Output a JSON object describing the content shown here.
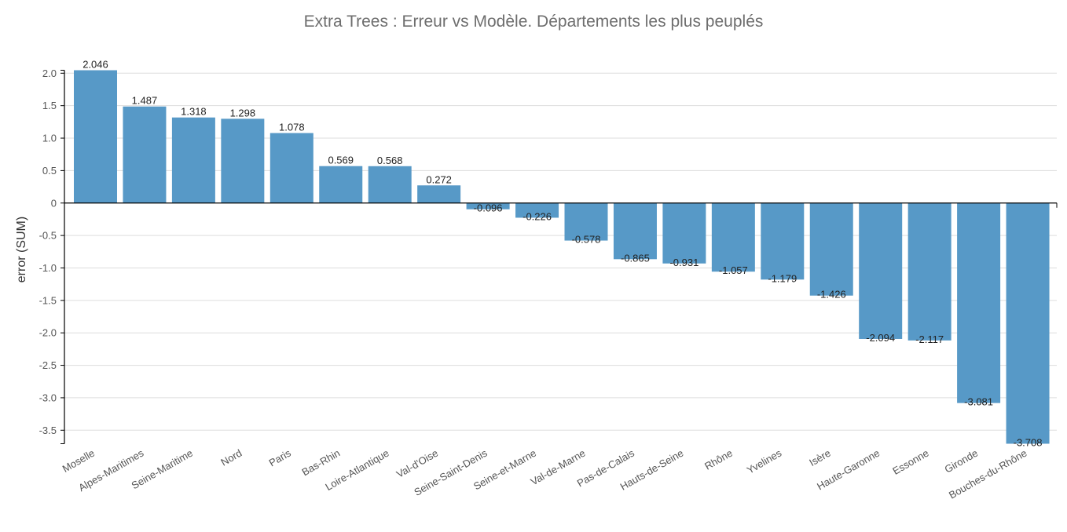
{
  "chart_data": {
    "type": "bar",
    "title": "Extra Trees : Erreur vs Modèle. Départements les plus peuplés",
    "xlabel": "",
    "ylabel": "error (SUM)",
    "categories": [
      "Moselle",
      "Alpes-Maritimes",
      "Seine-Maritime",
      "Nord",
      "Paris",
      "Bas-Rhin",
      "Loire-Atlantique",
      "Val-d'Oise",
      "Seine-Saint-Denis",
      "Seine-et-Marne",
      "Val-de-Marne",
      "Pas-de-Calais",
      "Hauts-de-Seine",
      "Rhône",
      "Yvelines",
      "Isère",
      "Haute-Garonne",
      "Essonne",
      "Gironde",
      "Bouches-du-Rhône"
    ],
    "values": [
      2.046,
      1.487,
      1.318,
      1.298,
      1.078,
      0.569,
      0.568,
      0.272,
      -0.096,
      -0.226,
      -0.578,
      -0.865,
      -0.931,
      -1.057,
      -1.179,
      -1.426,
      -2.094,
      -2.117,
      -3.081,
      -3.708
    ],
    "data_labels": [
      "2.046",
      "1.487",
      "1.318",
      "1.298",
      "1.078",
      "0.569",
      "0.568",
      "0.272",
      "-0.096",
      "-0.226",
      "-0.578",
      "-0.865",
      "-0.931",
      "-1.057",
      "-1.179",
      "-1.426",
      "-2.094",
      "-2.117",
      "-3.081",
      "-3.708"
    ],
    "yticks": [
      2.0,
      1.5,
      1.0,
      0.5,
      0,
      -0.5,
      -1.0,
      -1.5,
      -2.0,
      -2.5,
      -3.0,
      -3.5
    ],
    "ytick_labels": [
      "2.0",
      "1.5",
      "1.0",
      "0.5",
      "0",
      "-0.5",
      "-1.0",
      "-1.5",
      "-2.0",
      "-2.5",
      "-3.0",
      "-3.5"
    ],
    "ylim": [
      -3.708,
      2.046
    ],
    "grid": true,
    "legend": "none",
    "colors": {
      "bar": "#5799c7",
      "grid": "#dddddd",
      "axis": "#000000"
    }
  }
}
